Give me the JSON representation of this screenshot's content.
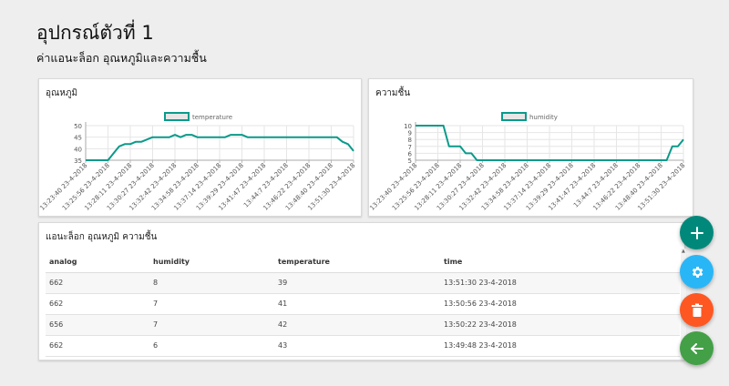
{
  "page": {
    "title": "อุปกรณ์ตัวที่ 1",
    "subtitle": "ค่าแอนะล็อก อุณหภูมิและความชื้น"
  },
  "colors": {
    "line": "#0a9a8a",
    "fab_add": "#00897b",
    "fab_settings": "#29b6f6",
    "fab_delete": "#ff5722",
    "fab_back": "#43a047"
  },
  "chart_data": [
    {
      "type": "line",
      "title": "อุณหภูมิ",
      "legend": "temperature",
      "legend_position": "top-center",
      "grid": true,
      "ylim": [
        35,
        50
      ],
      "yticks": [
        35,
        40,
        45,
        50
      ],
      "xticks": [
        "13:23:40 23-4-2018",
        "13:25:56 23-4-2018",
        "13:28:11 23-4-2018",
        "13:30:27 23-4-2018",
        "13:32:42 23-4-2018",
        "13:34:58 23-4-2018",
        "13:37:14 23-4-2018",
        "13:39:29 23-4-2018",
        "13:41:47 23-4-2018",
        "13:44:7 23-4-2018",
        "13:46:22 23-4-2018",
        "13:48:40 23-4-2018",
        "13:51:30 23-4-2018"
      ],
      "x": [
        0,
        1,
        2,
        3,
        4,
        5,
        6,
        7,
        8,
        9,
        10,
        11,
        12,
        13,
        14,
        15,
        16,
        17,
        18,
        19,
        20,
        21,
        22,
        23,
        24,
        25,
        26,
        27,
        28,
        29,
        30,
        31,
        32,
        33,
        34,
        35,
        36,
        37,
        38,
        39,
        40,
        41,
        42,
        43,
        44,
        45,
        46,
        47,
        48
      ],
      "values": [
        35,
        35,
        35,
        35,
        35,
        38,
        41,
        42,
        42,
        43,
        43,
        44,
        45,
        45,
        45,
        45,
        46,
        45,
        46,
        46,
        45,
        45,
        45,
        45,
        45,
        45,
        46,
        46,
        46,
        45,
        45,
        45,
        45,
        45,
        45,
        45,
        45,
        45,
        45,
        45,
        45,
        45,
        45,
        45,
        45,
        45,
        43,
        42,
        39
      ]
    },
    {
      "type": "line",
      "title": "ความชื้น",
      "legend": "humidity",
      "legend_position": "top-center",
      "grid": true,
      "ylim": [
        5,
        10
      ],
      "yticks": [
        5,
        6,
        7,
        8,
        9,
        10
      ],
      "xticks": [
        "13:23:40 23-4-2018",
        "13:25:56 23-4-2018",
        "13:28:11 23-4-2018",
        "13:30:27 23-4-2018",
        "13:32:42 23-4-2018",
        "13:34:58 23-4-2018",
        "13:37:14 23-4-2018",
        "13:39:29 23-4-2018",
        "13:41:47 23-4-2018",
        "13:44:7 23-4-2018",
        "13:46:22 23-4-2018",
        "13:48:40 23-4-2018",
        "13:51:30 23-4-2018"
      ],
      "x": [
        0,
        1,
        2,
        3,
        4,
        5,
        6,
        7,
        8,
        9,
        10,
        11,
        12,
        13,
        14,
        15,
        16,
        17,
        18,
        19,
        20,
        21,
        22,
        23,
        24,
        25,
        26,
        27,
        28,
        29,
        30,
        31,
        32,
        33,
        34,
        35,
        36,
        37,
        38,
        39,
        40,
        41,
        42,
        43,
        44,
        45,
        46,
        47,
        48
      ],
      "values": [
        10,
        10,
        10,
        10,
        10,
        10,
        7,
        7,
        7,
        6,
        6,
        5,
        5,
        5,
        5,
        5,
        5,
        5,
        5,
        5,
        5,
        5,
        5,
        5,
        5,
        5,
        5,
        5,
        5,
        5,
        5,
        5,
        5,
        5,
        5,
        5,
        5,
        5,
        5,
        5,
        5,
        5,
        5,
        5,
        5,
        5,
        7,
        7,
        8
      ]
    }
  ],
  "table": {
    "title": "แอนะล็อก อุณหภูมิ ความชื้น",
    "headers": [
      "analog",
      "humidity",
      "temperature",
      "time"
    ],
    "rows": [
      [
        "662",
        "8",
        "39",
        "13:51:30 23-4-2018"
      ],
      [
        "662",
        "7",
        "41",
        "13:50:56 23-4-2018"
      ],
      [
        "656",
        "7",
        "42",
        "13:50:22 23-4-2018"
      ],
      [
        "662",
        "6",
        "43",
        "13:49:48 23-4-2018"
      ]
    ]
  },
  "fabs": [
    {
      "icon": "plus-icon",
      "glyph": "+"
    },
    {
      "icon": "gear-icon",
      "glyph": ""
    },
    {
      "icon": "trash-icon",
      "glyph": ""
    },
    {
      "icon": "arrow-left-icon",
      "glyph": ""
    }
  ]
}
